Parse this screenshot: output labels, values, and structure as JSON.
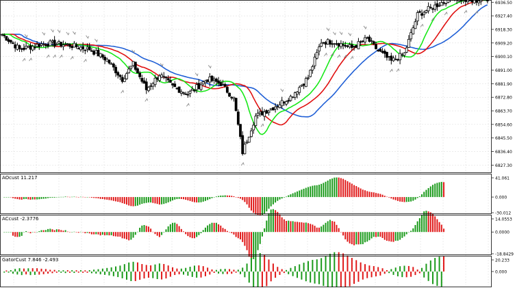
{
  "colors": {
    "bull_candle": "#000000",
    "bear_candle": "#000000",
    "alligator_jaw": "#1f5fd6",
    "alligator_teeth": "#e01010",
    "alligator_lips": "#18e818",
    "hist_up": "#1a9a1a",
    "hist_down": "#e01818",
    "grid": "#d8d8d8",
    "fractal_arrow": "#8a8a8a"
  },
  "chart_data": [
    {
      "type": "candlestick",
      "panel": "price",
      "price_axis_ticks": [
        "6936.50",
        "6927.40",
        "6918.30",
        "6909.20",
        "6900.10",
        "6891.00",
        "6881.90",
        "6872.80",
        "6863.70",
        "6854.60",
        "6845.50",
        "6836.40",
        "6827.30"
      ],
      "ylim": [
        6822,
        6938
      ],
      "overlays": [
        "Alligator jaw",
        "Alligator teeth",
        "Alligator lips"
      ],
      "grid": true
    },
    {
      "type": "bar",
      "panel": "AOcust",
      "title": "AOcust 11.217",
      "axis_ticks": [
        "41.061",
        "0.000",
        "-30.012"
      ],
      "ylim": [
        -30.012,
        41.061
      ]
    },
    {
      "type": "bar",
      "panel": "ACcust",
      "title": "ACcust -2.3776",
      "axis_ticks": [
        "14.0553",
        "0.0000",
        "-18.8429"
      ],
      "ylim": [
        -18.8429,
        14.0553
      ]
    },
    {
      "type": "bar",
      "panel": "GatorCust",
      "title": "GatorCust 7.846 -2.493",
      "axis_ticks": [
        "20.233",
        "0.000"
      ],
      "ylim": [
        -20.233,
        20.233
      ]
    }
  ]
}
